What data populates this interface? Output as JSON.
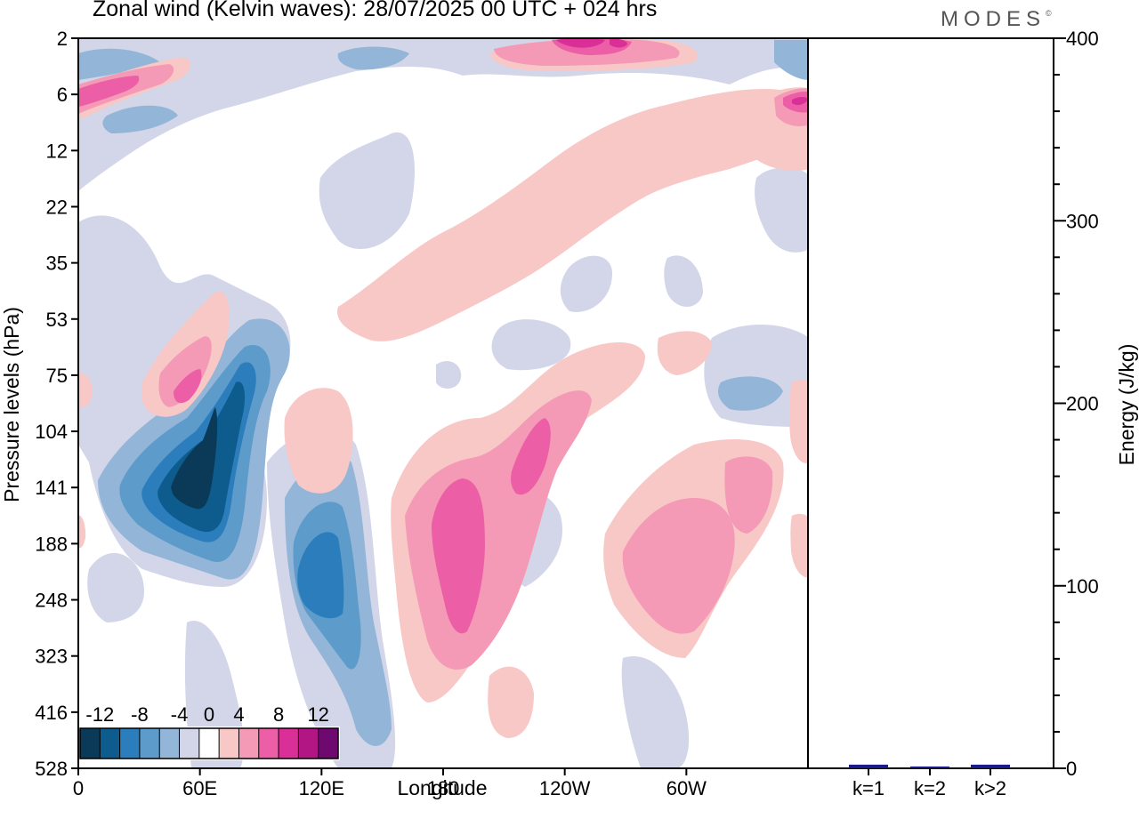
{
  "title": "Zonal wind (Kelvin waves):  28/07/2025  00 UTC  + 024 hrs",
  "logo": "MODES",
  "chart_data": [
    {
      "type": "heatmap",
      "title": "Zonal wind (Kelvin waves):  28/07/2025  00 UTC  + 024 hrs",
      "xlabel": "Longitude",
      "ylabel": "Pressure levels (hPa)",
      "x_ticks": [
        "0",
        "60E",
        "120E",
        "180",
        "120W",
        "60W"
      ],
      "x_tick_degrees": [
        0,
        60,
        120,
        180,
        240,
        300
      ],
      "xlim": [
        0,
        360
      ],
      "y_ticks": [
        "2",
        "6",
        "12",
        "22",
        "35",
        "53",
        "75",
        "104",
        "141",
        "188",
        "248",
        "323",
        "416",
        "528"
      ],
      "y_scale": "pressure levels (top 2 hPa, bottom 528 hPa)",
      "colorbar": {
        "labels": [
          "-12",
          "-8",
          "-4",
          "0",
          "4",
          "8",
          "12"
        ],
        "label_values": [
          -12,
          -8,
          -4,
          0,
          4,
          8,
          12
        ],
        "bounds": [
          -14,
          -12,
          -10,
          -8,
          -6,
          -4,
          -2,
          2,
          4,
          6,
          8,
          10,
          12,
          14
        ],
        "colors": [
          "#0b3a59",
          "#0e5c8e",
          "#2b7dbb",
          "#5d9bcb",
          "#93b5d8",
          "#d2d6e8",
          "#ffffff",
          "#f8c8c6",
          "#f59ab6",
          "#ec5ea5",
          "#d92f96",
          "#b11684",
          "#6e0a6f"
        ]
      },
      "levels": [
        "neg6",
        "neg5",
        "neg4",
        "neg3",
        "neg2",
        "neg1",
        "pos1",
        "pos2",
        "pos3",
        "pos4",
        "pos5",
        "pos6"
      ],
      "features": [
        {
          "name": "strong-easterly-core-60E",
          "lon": [
            20,
            80
          ],
          "level_range": [
            "75",
            "248"
          ],
          "min_value": -13
        },
        {
          "name": "easterly-core-120E",
          "lon": [
            105,
            145
          ],
          "level_range": [
            "141",
            "528"
          ],
          "min_value": -10
        },
        {
          "name": "westerly-core-180",
          "lon": [
            160,
            220
          ],
          "level_range": [
            "104",
            "323"
          ],
          "max_value": 7
        },
        {
          "name": "westerly-tilted-band",
          "lon": [
            120,
            300
          ],
          "level_range": [
            "12",
            "104"
          ],
          "max_value": 3
        },
        {
          "name": "westerly-60W",
          "lon": [
            260,
            330
          ],
          "level_range": [
            "104",
            "323"
          ],
          "max_value": 5
        },
        {
          "name": "westerly-top-120W",
          "lon": [
            200,
            300
          ],
          "level_range": [
            "2",
            "6"
          ],
          "max_value": 12
        }
      ]
    },
    {
      "type": "bar",
      "categories": [
        "k=1",
        "k=2",
        "k>2"
      ],
      "values": [
        2,
        1,
        2
      ],
      "ylabel": "Energy (J/kg)",
      "ylim": [
        0,
        400
      ],
      "y_ticks": [
        0,
        100,
        200,
        300,
        400
      ],
      "bar_color": "#1a1a8c"
    }
  ]
}
